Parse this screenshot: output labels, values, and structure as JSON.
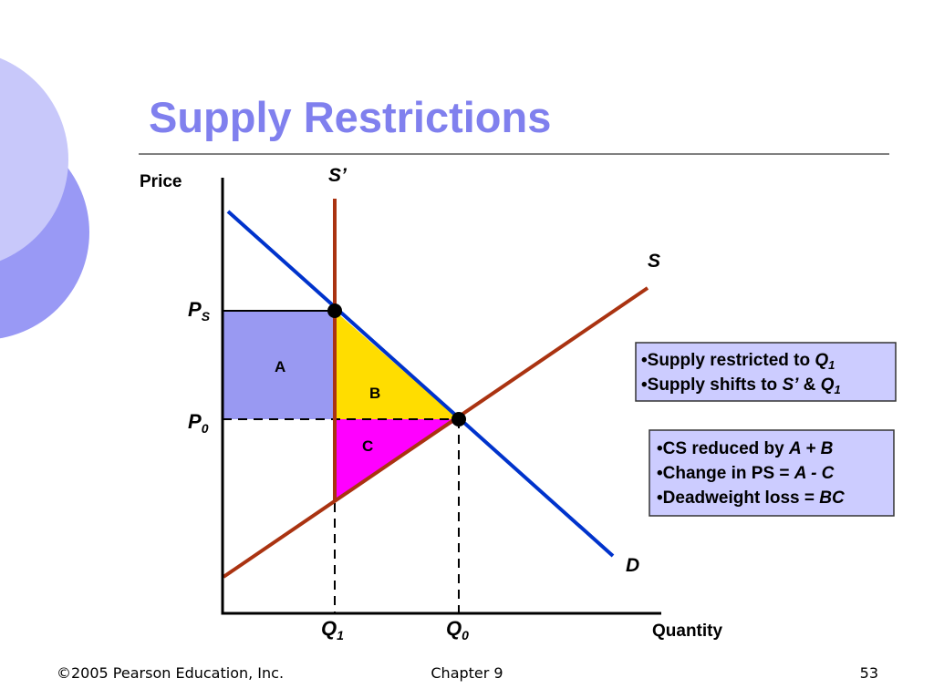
{
  "title": "Supply Restrictions",
  "axes": {
    "y": "Price",
    "x": "Quantity"
  },
  "curves": {
    "s_prime": "S’",
    "s": "S",
    "d": "D"
  },
  "prices": [
    {
      "main": "P",
      "sub": "S"
    },
    {
      "main": "P",
      "sub": "0"
    }
  ],
  "quantities": [
    {
      "main": "Q",
      "sub": "1"
    },
    {
      "main": "Q",
      "sub": "0"
    }
  ],
  "areas": [
    "A",
    "B",
    "C"
  ],
  "box1": [
    [
      "•Supply restricted to ",
      "Q",
      "1"
    ],
    [
      "•Supply shifts to ",
      "S’",
      " & ",
      "Q",
      "1"
    ]
  ],
  "box2": [
    [
      "•CS reduced by ",
      "A + B"
    ],
    [
      "•Change in PS = ",
      "A - C"
    ],
    [
      "•Deadweight loss = ",
      "BC"
    ]
  ],
  "footer": {
    "left": "©2005 Pearson Education, Inc.",
    "center": "Chapter 9",
    "page": "53"
  }
}
